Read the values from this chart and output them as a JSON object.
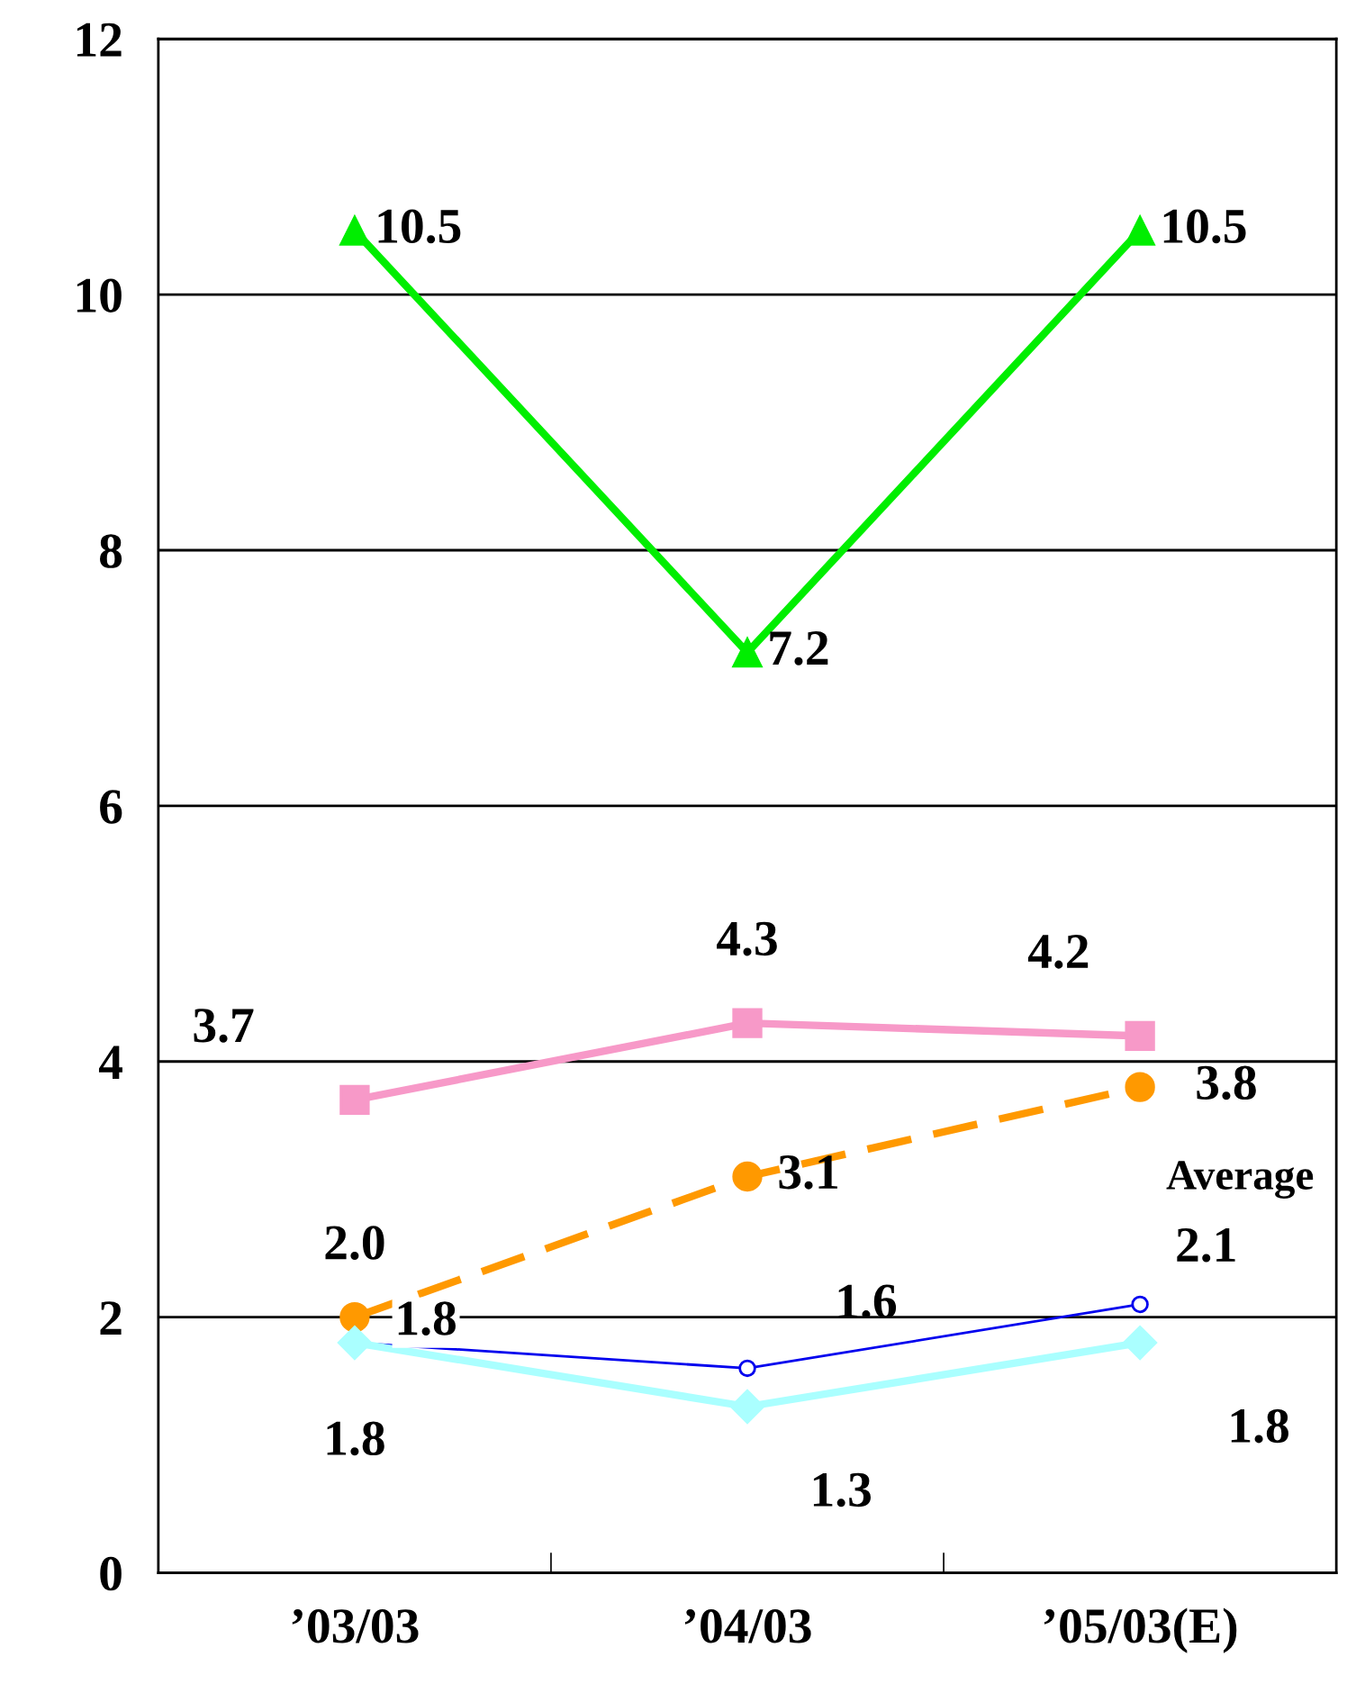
{
  "chart_data": {
    "type": "line",
    "categories": [
      "’03/03",
      "’04/03",
      "’05/03(E)"
    ],
    "ylim": [
      0,
      12
    ],
    "yticks": [
      0,
      2,
      4,
      6,
      8,
      10,
      12
    ],
    "grid": "y",
    "legend": false,
    "series": [
      {
        "color": "#00ee00",
        "marker": "triangle",
        "line_style": "solid",
        "values": [
          10.5,
          7.2,
          10.5
        ],
        "value_labels": [
          "10.5",
          "7.2",
          "10.5"
        ]
      },
      {
        "color": "#f799c8",
        "marker": "square",
        "line_style": "solid",
        "values": [
          3.7,
          4.3,
          4.2
        ],
        "value_labels": [
          "3.7",
          "4.3",
          "4.2"
        ]
      },
      {
        "color": "#ff9900",
        "marker": "circle",
        "line_style": "dashed",
        "values": [
          2.0,
          3.1,
          3.8
        ],
        "value_labels": [
          "2.0",
          "3.1",
          "3.8"
        ]
      },
      {
        "name": "Average",
        "color": "#0000ee",
        "marker": "circle",
        "line_style": "solid",
        "values": [
          1.8,
          1.6,
          2.1
        ],
        "value_labels": [
          "1.8",
          "1.6",
          "2.1"
        ]
      },
      {
        "color": "#aaffff",
        "marker": "diamond",
        "line_style": "solid",
        "values": [
          1.8,
          1.3,
          1.8
        ],
        "value_labels": [
          "1.8",
          "1.3",
          "1.8"
        ]
      }
    ]
  }
}
